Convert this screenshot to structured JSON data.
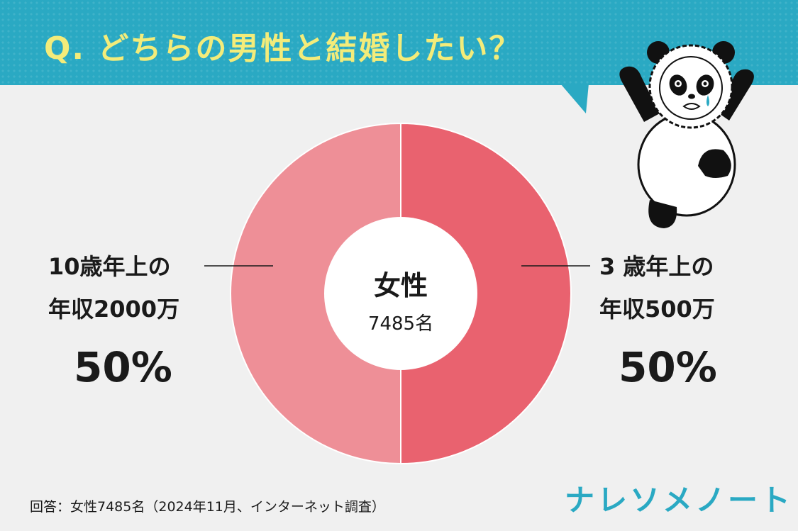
{
  "header": {
    "question": "Q. どちらの男性と結婚したい？"
  },
  "chart_data": {
    "type": "pie",
    "donut": true,
    "categories": [
      "3 歳年上の年収500万",
      "10歳年上の年収2000万"
    ],
    "values": [
      50,
      50
    ],
    "slices": [
      {
        "label_line1": "3 歳年上の",
        "label_line2": "年収500万",
        "percent_label": "50%",
        "value": 50,
        "color": "#e9626f"
      },
      {
        "label_line1": "10歳年上の",
        "label_line2": "年収2000万",
        "percent_label": "50%",
        "value": 50,
        "color": "#ee8f97"
      }
    ],
    "center": {
      "title": "女性",
      "count": "7485名"
    }
  },
  "footer": {
    "note": "回答：女性7485名（2024年11月、インターネット調査）",
    "brand": "ナレソメノート"
  },
  "colors": {
    "banner": "#2aa9c3",
    "question_text": "#f3ec7a",
    "background": "#f0f0f0"
  },
  "icons": {
    "mascot": "panda-icon"
  }
}
